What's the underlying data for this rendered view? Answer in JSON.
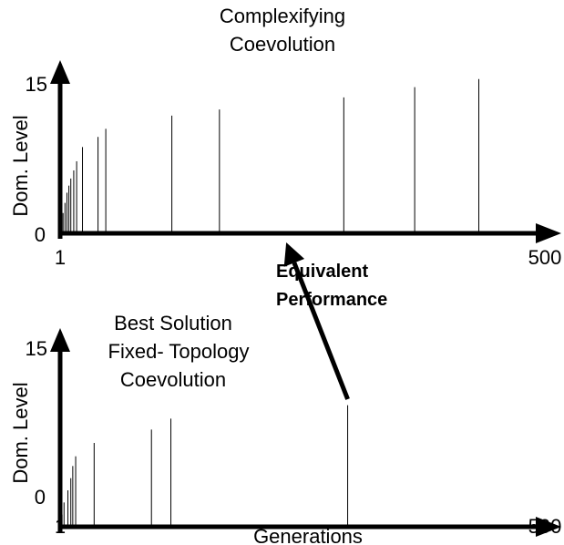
{
  "chart_data": [
    {
      "type": "bar",
      "title": "Complexifying Coevolution",
      "title_lines": [
        "Complexifying",
        "Coevolution"
      ],
      "xlabel": "",
      "ylabel": "Dom. Level",
      "xlim": [
        1,
        500
      ],
      "ylim": [
        0,
        15
      ],
      "x_ticks": [
        "1",
        "500"
      ],
      "y_ticks": [
        "0",
        "15"
      ],
      "grid": false,
      "points": [
        {
          "x": 2,
          "y": 1
        },
        {
          "x": 4,
          "y": 2
        },
        {
          "x": 6,
          "y": 3
        },
        {
          "x": 8,
          "y": 4
        },
        {
          "x": 10,
          "y": 4.7
        },
        {
          "x": 12,
          "y": 5.4
        },
        {
          "x": 15,
          "y": 6.2
        },
        {
          "x": 18,
          "y": 7.1
        },
        {
          "x": 24,
          "y": 8.5
        },
        {
          "x": 40,
          "y": 9.5
        },
        {
          "x": 48,
          "y": 10.3
        },
        {
          "x": 116,
          "y": 11.6
        },
        {
          "x": 165,
          "y": 12.2
        },
        {
          "x": 293,
          "y": 13.4
        },
        {
          "x": 366,
          "y": 14.4
        },
        {
          "x": 432,
          "y": 15.2
        }
      ]
    },
    {
      "type": "bar",
      "title": "Best Solution Fixed- Topology Coevolution",
      "title_lines": [
        "Best Solution",
        "Fixed- Topology",
        "Coevolution"
      ],
      "xlabel": "Generations",
      "ylabel": "Dom. Level",
      "xlim": [
        1,
        500
      ],
      "ylim": [
        0,
        15
      ],
      "x_ticks": [
        "1",
        "500"
      ],
      "y_ticks": [
        "0",
        "15"
      ],
      "grid": false,
      "points": [
        {
          "x": 3,
          "y": 1
        },
        {
          "x": 5,
          "y": 2
        },
        {
          "x": 9,
          "y": 3
        },
        {
          "x": 12,
          "y": 4
        },
        {
          "x": 14,
          "y": 5
        },
        {
          "x": 17,
          "y": 5.8
        },
        {
          "x": 36,
          "y": 6.9
        },
        {
          "x": 95,
          "y": 8.0
        },
        {
          "x": 115,
          "y": 8.9
        },
        {
          "x": 297,
          "y": 10.0
        }
      ]
    }
  ],
  "annotation": {
    "lines": [
      "Equivalent",
      "Performance"
    ],
    "from_chart": 1,
    "from_x": 297,
    "to_chart": 0,
    "to_x": 230
  }
}
